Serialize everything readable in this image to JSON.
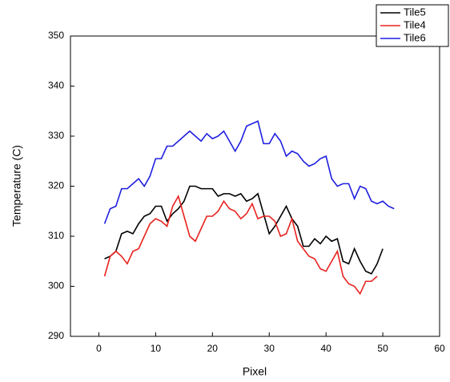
{
  "chart_data": {
    "type": "line",
    "x_label": "Pixel",
    "y_label": "Temperature (C)",
    "xlim": [
      -5,
      60
    ],
    "xticks": [
      0,
      10,
      20,
      30,
      40,
      50,
      60
    ],
    "ylim": [
      290,
      350
    ],
    "yticks": [
      290,
      300,
      310,
      320,
      330,
      340,
      350
    ],
    "legend": "top-right",
    "series": [
      {
        "name": "Tile5",
        "color": "#000000",
        "x": [
          1,
          2,
          3,
          4,
          5,
          6,
          7,
          8,
          9,
          10,
          11,
          12,
          13,
          14,
          15,
          16,
          17,
          18,
          19,
          20,
          21,
          22,
          23,
          24,
          25,
          26,
          27,
          28,
          29,
          30,
          31,
          32,
          33,
          34,
          35,
          36,
          37,
          38,
          39,
          40,
          41,
          42,
          43,
          44,
          45,
          46,
          47,
          48,
          49,
          50
        ],
        "values": [
          305.5,
          306,
          307,
          310.5,
          311,
          310.5,
          312.5,
          314,
          314.5,
          316,
          316,
          313,
          314.5,
          315.5,
          317,
          320,
          320,
          319.5,
          319.5,
          319.5,
          318,
          318.5,
          318.5,
          318,
          318.5,
          317,
          317.5,
          318.5,
          314.5,
          310.5,
          312,
          314,
          316,
          313.5,
          312,
          308,
          308,
          309.5,
          308.5,
          310,
          309,
          309.5,
          305,
          304.5,
          307.5,
          305,
          303,
          302.5,
          304.5,
          307.5
        ]
      },
      {
        "name": "Tile4",
        "color": "#e8231f",
        "x": [
          1,
          2,
          3,
          4,
          5,
          6,
          7,
          8,
          9,
          10,
          11,
          12,
          13,
          14,
          15,
          16,
          17,
          18,
          19,
          20,
          21,
          22,
          23,
          24,
          25,
          26,
          27,
          28,
          29,
          30,
          31,
          32,
          33,
          34,
          35,
          36,
          37,
          38,
          39,
          40,
          41,
          42,
          43,
          44,
          45,
          46,
          47,
          48,
          49
        ],
        "values": [
          302,
          306,
          307,
          306,
          304.5,
          307,
          307.5,
          310,
          312.5,
          313.5,
          313,
          312,
          316,
          318,
          314,
          310,
          309,
          311.5,
          314,
          314,
          315,
          317,
          315.5,
          315,
          313.5,
          314.5,
          316.5,
          313.5,
          314,
          314,
          313,
          310,
          310.5,
          313.5,
          309,
          307.5,
          306,
          305.5,
          303.5,
          303,
          305,
          307,
          302,
          300.5,
          300,
          298.5,
          301,
          301,
          302
        ]
      },
      {
        "name": "Tile6",
        "color": "#1f1fe0",
        "x": [
          1,
          2,
          3,
          4,
          5,
          6,
          7,
          8,
          9,
          10,
          11,
          12,
          13,
          14,
          15,
          16,
          17,
          18,
          19,
          20,
          21,
          22,
          23,
          24,
          25,
          26,
          27,
          28,
          29,
          30,
          31,
          32,
          33,
          34,
          35,
          36,
          37,
          38,
          39,
          40,
          41,
          42,
          43,
          44,
          45,
          46,
          47,
          48,
          49,
          50,
          51,
          52
        ],
        "values": [
          312.5,
          315.5,
          316,
          319.5,
          319.5,
          320.5,
          321.5,
          320,
          322,
          325.5,
          325.5,
          328,
          328,
          329,
          330,
          331,
          330,
          329,
          330.5,
          329.5,
          330,
          331,
          329,
          327,
          329,
          332,
          332.5,
          333,
          328.5,
          328.5,
          330.5,
          329,
          326,
          327,
          326.5,
          325,
          324,
          324.5,
          325.5,
          326,
          321.5,
          320,
          320.5,
          320.5,
          317.5,
          320,
          319.5,
          317,
          316.5,
          317,
          316,
          315.5
        ]
      }
    ]
  }
}
